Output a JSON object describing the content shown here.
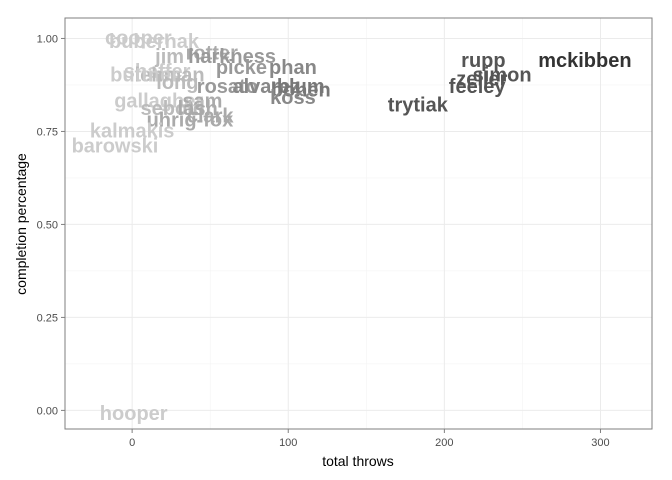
{
  "chart_data": {
    "type": "scatter",
    "xlabel": "total throws",
    "ylabel": "completion percentage",
    "xlim": [
      -43,
      333
    ],
    "ylim": [
      -0.05,
      1.055
    ],
    "x_ticks": [
      0,
      100,
      200,
      300
    ],
    "y_ticks": [
      0.0,
      0.25,
      0.5,
      0.75,
      1.0
    ],
    "x_tick_labels": [
      "0",
      "100",
      "200",
      "300"
    ],
    "y_tick_labels": [
      "0.00",
      "0.25",
      "0.50",
      "0.75",
      "1.00"
    ],
    "grid": true,
    "legend": "none",
    "points": [
      {
        "label": "cooper",
        "x": 4,
        "y": 1.0,
        "color": "#cccccc"
      },
      {
        "label": "bubernak",
        "x": 14,
        "y": 0.99,
        "color": "#cccccc"
      },
      {
        "label": "rotter",
        "x": 51,
        "y": 0.96,
        "color": "#aaaaaa"
      },
      {
        "label": "jim",
        "x": 24,
        "y": 0.95,
        "color": "#bbbbbb"
      },
      {
        "label": "harkness",
        "x": 64,
        "y": 0.95,
        "color": "#999999"
      },
      {
        "label": "picke",
        "x": 70,
        "y": 0.92,
        "color": "#999999"
      },
      {
        "label": "phan",
        "x": 103,
        "y": 0.92,
        "color": "#888888"
      },
      {
        "label": "shaffer",
        "x": 16,
        "y": 0.91,
        "color": "#cccccc"
      },
      {
        "label": "lehman",
        "x": 24,
        "y": 0.9,
        "color": "#bbbbbb"
      },
      {
        "label": "buttner",
        "x": 8,
        "y": 0.9,
        "color": "#cccccc"
      },
      {
        "label": "long",
        "x": 29,
        "y": 0.88,
        "color": "#bbbbbb"
      },
      {
        "label": "rosato",
        "x": 61,
        "y": 0.87,
        "color": "#999999"
      },
      {
        "label": "alvarez",
        "x": 86,
        "y": 0.87,
        "color": "#888888"
      },
      {
        "label": "blum",
        "x": 108,
        "y": 0.87,
        "color": "#777777"
      },
      {
        "label": "bohen",
        "x": 108,
        "y": 0.86,
        "color": "#777777"
      },
      {
        "label": "koss",
        "x": 103,
        "y": 0.84,
        "color": "#888888"
      },
      {
        "label": "gallagher",
        "x": 17,
        "y": 0.83,
        "color": "#cccccc"
      },
      {
        "label": "sam",
        "x": 45,
        "y": 0.83,
        "color": "#aaaaaa"
      },
      {
        "label": "sebold",
        "x": 26,
        "y": 0.81,
        "color": "#bbbbbb"
      },
      {
        "label": "lash",
        "x": 42,
        "y": 0.81,
        "color": "#aaaaaa"
      },
      {
        "label": "clark",
        "x": 50,
        "y": 0.79,
        "color": "#aaaaaa"
      },
      {
        "label": "uhrig-fox",
        "x": 37,
        "y": 0.78,
        "color": "#aaaaaa"
      },
      {
        "label": "kalmakis",
        "x": 0,
        "y": 0.75,
        "color": "#cccccc"
      },
      {
        "label": "barowski",
        "x": -11,
        "y": 0.71,
        "color": "#cccccc"
      },
      {
        "label": "hooper",
        "x": 1,
        "y": -0.01,
        "color": "#cccccc"
      },
      {
        "label": "rupp",
        "x": 225,
        "y": 0.94,
        "color": "#555555"
      },
      {
        "label": "mckibben",
        "x": 290,
        "y": 0.94,
        "color": "#333333"
      },
      {
        "label": "simon",
        "x": 237,
        "y": 0.9,
        "color": "#555555"
      },
      {
        "label": "zeller",
        "x": 224,
        "y": 0.89,
        "color": "#555555"
      },
      {
        "label": "feeley",
        "x": 221,
        "y": 0.87,
        "color": "#555555"
      },
      {
        "label": "trytiak",
        "x": 183,
        "y": 0.82,
        "color": "#555555"
      }
    ]
  }
}
